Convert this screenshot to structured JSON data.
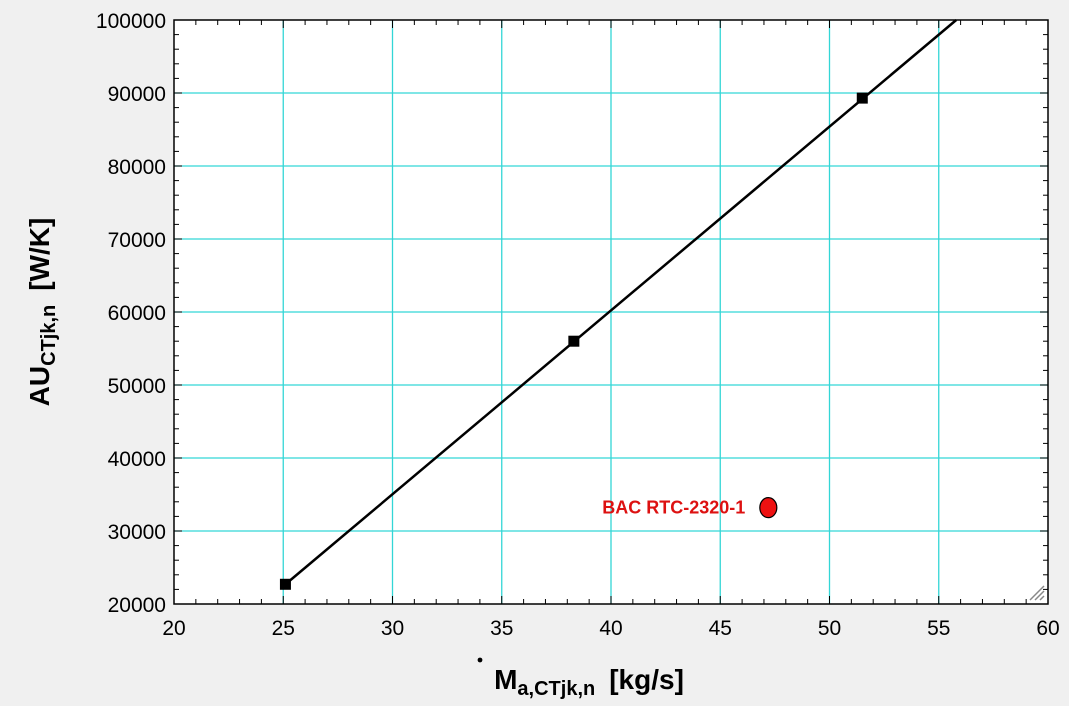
{
  "chart_data": {
    "type": "line",
    "xlabel": {
      "main": "M",
      "sub": "a,CTjk,n",
      "unit": "[kg/s]"
    },
    "ylabel": {
      "main": "AU",
      "sub": "CTjk,n",
      "unit": "[W/K]"
    },
    "xlim": [
      20,
      60
    ],
    "ylim": [
      20000,
      100000
    ],
    "x_ticks": [
      20,
      25,
      30,
      35,
      40,
      45,
      50,
      55,
      60
    ],
    "x_tick_labels": [
      "20",
      "25",
      "30",
      "35",
      "40",
      "45",
      "50",
      "55",
      "60"
    ],
    "y_ticks": [
      20000,
      30000,
      40000,
      50000,
      60000,
      70000,
      80000,
      90000,
      100000
    ],
    "y_tick_labels": [
      "20000",
      "30000",
      "40000",
      "50000",
      "60000",
      "70000",
      "80000",
      "90000",
      "100000"
    ],
    "grid": true,
    "series": [
      {
        "type": "line",
        "line_x": [
          25.3,
          55.8
        ],
        "line_y": [
          23200,
          100000
        ],
        "markers_x": [
          25.1,
          38.3,
          51.5
        ],
        "markers_y": [
          22700,
          56000,
          89300
        ],
        "color": "#000000"
      }
    ],
    "points": [
      {
        "x": 47.2,
        "y": 33200,
        "color": "#ee1111",
        "label": "BAC RTC-2320-1"
      }
    ],
    "colors": {
      "grid": "#33d6d6",
      "annotation": "#dd1111",
      "background": "#f0f0f0"
    }
  }
}
